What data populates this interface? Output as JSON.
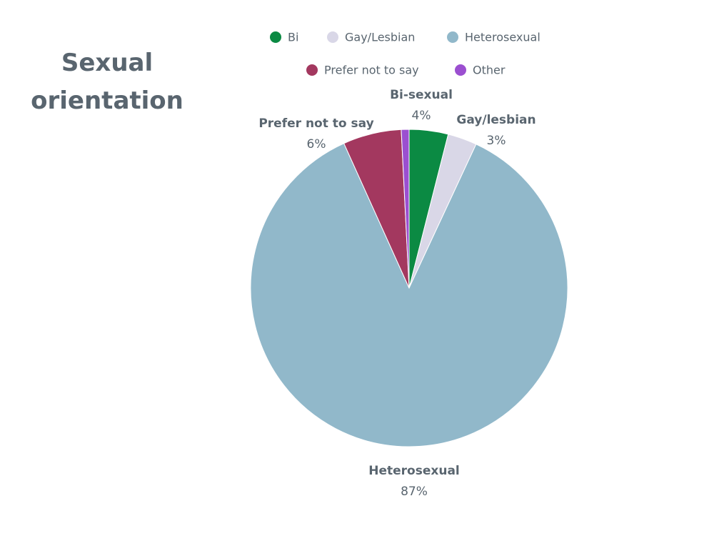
{
  "chart_data": {
    "type": "pie",
    "title": "Sexual orientation",
    "categories": [
      "Bi",
      "Gay/Lesbian",
      "Heterosexual",
      "Prefer not to say",
      "Other"
    ],
    "values": [
      4,
      3,
      87,
      6,
      0.8
    ],
    "value_labels": [
      "4%",
      "3%",
      "87%",
      "6%",
      null
    ],
    "data_labels": [
      "Bi-sexual",
      "Gay/lesbian",
      "Heterosexual",
      "Prefer not to say",
      null
    ],
    "colors": [
      "#0b8a43",
      "#d9d7e7",
      "#91b8ca",
      "#a3385f",
      "#9b4fd0"
    ],
    "legend": "top"
  }
}
